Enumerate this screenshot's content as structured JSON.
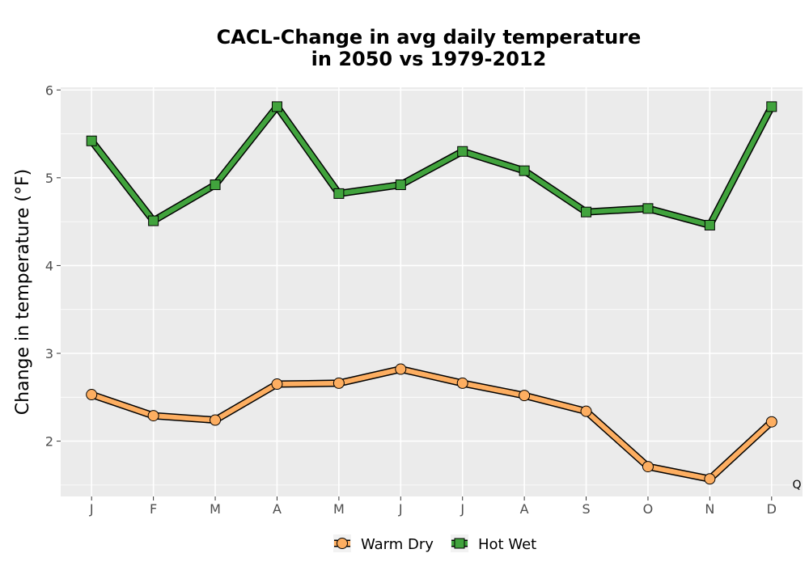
{
  "chart_data": {
    "type": "line",
    "title_lines": [
      "CACL-Change in avg daily temperature",
      "in 2050 vs 1979-2012"
    ],
    "ylabel": "Change in temperature (°F)",
    "xlabel": "",
    "categories": [
      "J",
      "F",
      "M",
      "A",
      "M",
      "J",
      "J",
      "A",
      "S",
      "O",
      "N",
      "D"
    ],
    "y_ticks": [
      "2",
      "3",
      "4",
      "5",
      "6"
    ],
    "ylim": [
      1.37,
      6.03
    ],
    "grid": true,
    "legend_position": "bottom",
    "corner_label": "Q",
    "series": [
      {
        "name": "Warm Dry",
        "marker": "circle",
        "color": "#fdae61",
        "values": [
          2.53,
          2.29,
          2.24,
          2.65,
          2.66,
          2.82,
          2.66,
          2.52,
          2.34,
          1.71,
          1.57,
          2.22
        ]
      },
      {
        "name": "Hot Wet",
        "marker": "square",
        "color": "#41a33d",
        "values": [
          5.42,
          4.51,
          4.92,
          5.81,
          4.82,
          4.92,
          5.3,
          5.08,
          4.61,
          4.65,
          4.46,
          5.81
        ]
      }
    ],
    "colors": {
      "panel_bg": "#ebebeb",
      "grid": "#ffffff",
      "outline": "#000000"
    }
  }
}
